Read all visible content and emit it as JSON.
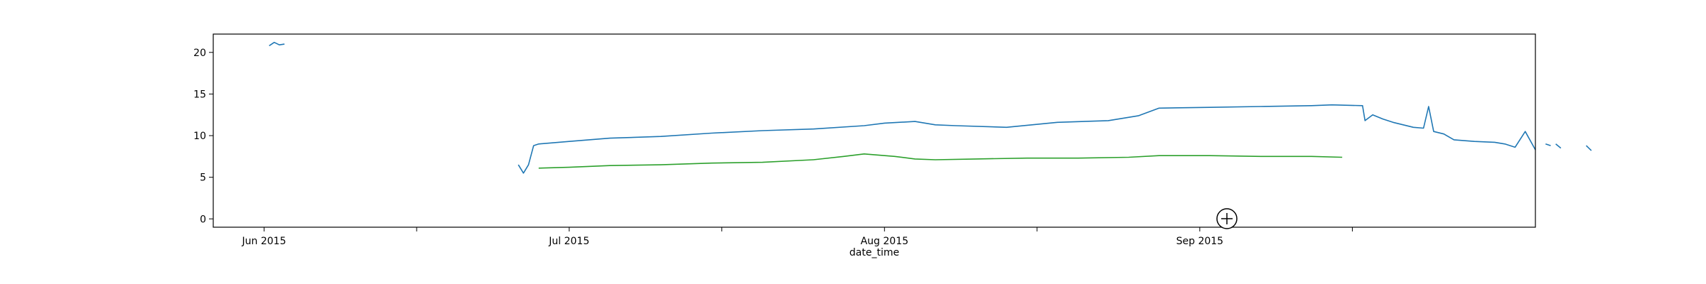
{
  "chart_data": {
    "type": "line",
    "xlabel": "date_time",
    "ylabel": "",
    "title": "",
    "grid": false,
    "xlim": [
      "2015-05-27",
      "2015-10-04"
    ],
    "ylim": [
      -1,
      22.2
    ],
    "x_ticks": [
      {
        "date": "2015-06-01",
        "label": "Jun 2015"
      },
      {
        "date": "2015-06-16",
        "label": ""
      },
      {
        "date": "2015-07-01",
        "label": "Jul 2015"
      },
      {
        "date": "2015-07-16",
        "label": ""
      },
      {
        "date": "2015-08-01",
        "label": "Aug 2015"
      },
      {
        "date": "2015-08-16",
        "label": ""
      },
      {
        "date": "2015-09-01",
        "label": "Sep 2015"
      },
      {
        "date": "2015-09-16",
        "label": ""
      }
    ],
    "y_ticks": [
      0,
      5,
      10,
      15,
      20
    ],
    "series": [
      {
        "color": "#1f77b4",
        "segments": [
          [
            [
              "2015-06-01T12:00",
              20.8
            ],
            [
              "2015-06-02T00:00",
              21.2
            ],
            [
              "2015-06-02T12:00",
              20.9
            ],
            [
              "2015-06-03T00:00",
              21.0
            ]
          ],
          [
            [
              "2015-06-26T00:00",
              6.5
            ],
            [
              "2015-06-26T12:00",
              5.5
            ],
            [
              "2015-06-27T00:00",
              6.5
            ],
            [
              "2015-06-27T12:00",
              8.8
            ],
            [
              "2015-06-28T00:00",
              9.0
            ],
            [
              "2015-07-01T00:00",
              9.3
            ],
            [
              "2015-07-05T00:00",
              9.7
            ],
            [
              "2015-07-10T00:00",
              9.9
            ],
            [
              "2015-07-15T00:00",
              10.3
            ],
            [
              "2015-07-20T00:00",
              10.6
            ],
            [
              "2015-07-25T00:00",
              10.8
            ],
            [
              "2015-07-30T00:00",
              11.2
            ],
            [
              "2015-08-01T00:00",
              11.5
            ],
            [
              "2015-08-04T00:00",
              11.7
            ],
            [
              "2015-08-06T00:00",
              11.3
            ],
            [
              "2015-08-08T00:00",
              11.2
            ],
            [
              "2015-08-13T00:00",
              11.0
            ],
            [
              "2015-08-18T00:00",
              11.6
            ],
            [
              "2015-08-23T00:00",
              11.8
            ],
            [
              "2015-08-26T00:00",
              12.4
            ],
            [
              "2015-08-28T00:00",
              13.3
            ],
            [
              "2015-09-02T00:00",
              13.4
            ],
            [
              "2015-09-07T00:00",
              13.5
            ],
            [
              "2015-09-12T00:00",
              13.6
            ],
            [
              "2015-09-14T00:00",
              13.7
            ],
            [
              "2015-09-17T00:00",
              13.6
            ],
            [
              "2015-09-17T06:00",
              11.8
            ],
            [
              "2015-09-18T00:00",
              12.5
            ],
            [
              "2015-09-19T00:00",
              12.0
            ],
            [
              "2015-09-20T00:00",
              11.6
            ],
            [
              "2015-09-22T00:00",
              11.0
            ],
            [
              "2015-09-23T00:00",
              10.9
            ],
            [
              "2015-09-23T12:00",
              13.5
            ],
            [
              "2015-09-24T00:00",
              10.5
            ],
            [
              "2015-09-25T00:00",
              10.2
            ],
            [
              "2015-09-26T00:00",
              9.5
            ],
            [
              "2015-09-28T00:00",
              9.3
            ],
            [
              "2015-09-30T00:00",
              9.2
            ],
            [
              "2015-10-01T00:00",
              9.0
            ],
            [
              "2015-10-02T00:00",
              8.6
            ],
            [
              "2015-10-03T00:00",
              10.5
            ],
            [
              "2015-10-04T00:00",
              8.3
            ]
          ],
          [
            [
              "2015-10-05T00:00",
              9.0
            ],
            [
              "2015-10-05T12:00",
              8.8
            ]
          ],
          [
            [
              "2015-10-06T00:00",
              9.0
            ],
            [
              "2015-10-06T12:00",
              8.5
            ]
          ],
          [
            [
              "2015-10-09T00:00",
              8.8
            ],
            [
              "2015-10-09T12:00",
              8.2
            ]
          ]
        ]
      },
      {
        "color": "#2ca02c",
        "segments": [
          [
            [
              "2015-06-28T00:00",
              6.1
            ],
            [
              "2015-07-01T00:00",
              6.2
            ],
            [
              "2015-07-05T00:00",
              6.4
            ],
            [
              "2015-07-10T00:00",
              6.5
            ],
            [
              "2015-07-15T00:00",
              6.7
            ],
            [
              "2015-07-20T00:00",
              6.8
            ],
            [
              "2015-07-25T00:00",
              7.1
            ],
            [
              "2015-07-28T00:00",
              7.5
            ],
            [
              "2015-07-30T00:00",
              7.8
            ],
            [
              "2015-08-02T00:00",
              7.5
            ],
            [
              "2015-08-04T00:00",
              7.2
            ],
            [
              "2015-08-06T00:00",
              7.1
            ],
            [
              "2015-08-10T00:00",
              7.2
            ],
            [
              "2015-08-15T00:00",
              7.3
            ],
            [
              "2015-08-20T00:00",
              7.3
            ],
            [
              "2015-08-25T00:00",
              7.4
            ],
            [
              "2015-08-28T00:00",
              7.6
            ],
            [
              "2015-09-02T00:00",
              7.6
            ],
            [
              "2015-09-07T00:00",
              7.5
            ],
            [
              "2015-09-12T00:00",
              7.5
            ],
            [
              "2015-09-15T00:00",
              7.4
            ]
          ]
        ]
      }
    ]
  },
  "zoom_icon": "zoom-in-icon"
}
